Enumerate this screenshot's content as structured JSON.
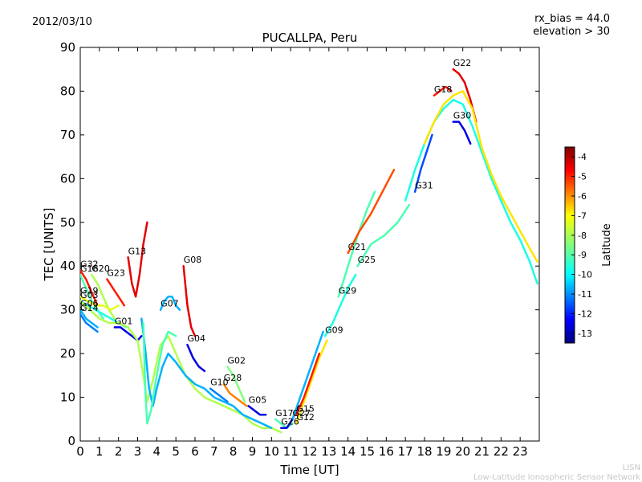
{
  "header": {
    "date": "2012/03/10",
    "rx_bias": "rx_bias = 44.0",
    "elevation": "elevation > 30"
  },
  "footer": {
    "org_short": "LISN",
    "org_full": "Low-Latitude Ionospheric Sensor Network"
  },
  "chart_data": {
    "type": "scatter",
    "title": "PUCALLPA, Peru",
    "xlabel": "Time [UT]",
    "ylabel": "TEC [UNITS]",
    "xlim": [
      0,
      24
    ],
    "ylim": [
      0,
      90
    ],
    "xticks": [
      "0",
      "1",
      "2",
      "3",
      "4",
      "5",
      "6",
      "7",
      "8",
      "9",
      "10",
      "11",
      "12",
      "13",
      "14",
      "15",
      "16",
      "17",
      "18",
      "19",
      "20",
      "21",
      "22",
      "23"
    ],
    "yticks": [
      "0",
      "10",
      "20",
      "30",
      "40",
      "50",
      "60",
      "70",
      "80",
      "90"
    ],
    "grid": false,
    "colorbar": {
      "label": "Latitude",
      "min": -13.5,
      "max": -3.5,
      "ticks": [
        "-4",
        "-5",
        "-6",
        "-7",
        "-8",
        "-9",
        "-10",
        "-11",
        "-12",
        "-13"
      ],
      "colors": [
        "#00007f",
        "#0000ff",
        "#007fff",
        "#00ffff",
        "#7fff7f",
        "#ffff00",
        "#ff7f00",
        "#ff0000",
        "#7f0000"
      ]
    },
    "series": [
      {
        "name": "G32",
        "lat": -5.0,
        "x": [
          0.0,
          0.3,
          0.6,
          0.9
        ],
        "y": [
          39,
          37,
          34,
          31
        ]
      },
      {
        "name": "G20",
        "lat": -8.0,
        "x": [
          0.6,
          0.9,
          1.2,
          1.5,
          1.8
        ],
        "y": [
          38,
          36,
          33,
          30,
          28
        ]
      },
      {
        "name": "G16",
        "lat": -9.0,
        "x": [
          0.0,
          0.3,
          0.6,
          0.9,
          1.2
        ],
        "y": [
          38,
          35,
          32,
          30,
          28
        ]
      },
      {
        "name": "G23",
        "lat": -5.0,
        "x": [
          1.4,
          1.7,
          2.0,
          2.3
        ],
        "y": [
          37,
          35,
          33,
          31
        ]
      },
      {
        "name": "G19",
        "lat": -7.5,
        "x": [
          0.0,
          0.4,
          0.8,
          1.2,
          1.6,
          2.0
        ],
        "y": [
          33,
          32,
          31,
          31,
          30,
          31
        ]
      },
      {
        "name": "G03",
        "lat": -9.5,
        "x": [
          0.0,
          0.4,
          0.8,
          1.2,
          1.6,
          2.0,
          2.4
        ],
        "y": [
          32,
          31,
          30,
          29,
          28,
          27,
          26
        ]
      },
      {
        "name": "G06",
        "lat": -10.5,
        "x": [
          0.0,
          0.3,
          0.6,
          0.9
        ],
        "y": [
          30,
          28,
          27,
          26
        ]
      },
      {
        "name": "G14",
        "lat": -11.0,
        "x": [
          0.0,
          0.3,
          0.6,
          0.9
        ],
        "y": [
          29,
          27,
          26,
          25
        ]
      },
      {
        "name": "G13",
        "lat": -4.5,
        "x": [
          2.5,
          2.7,
          2.9,
          3.1,
          3.3,
          3.5
        ],
        "y": [
          42,
          36,
          33,
          38,
          45,
          50
        ]
      },
      {
        "name": "G01",
        "lat": -12.5,
        "x": [
          1.8,
          2.1,
          2.4,
          2.7,
          3.0,
          3.2
        ],
        "y": [
          26,
          26,
          25,
          24,
          23,
          24
        ]
      },
      {
        "name": "G07",
        "lat": -10.5,
        "x": [
          4.2,
          4.4,
          4.6,
          4.8,
          5.0,
          5.2
        ],
        "y": [
          30,
          32,
          33,
          33,
          31,
          30
        ]
      },
      {
        "name": "G08",
        "lat": -4.5,
        "x": [
          5.4,
          5.6,
          5.8,
          6.0
        ],
        "y": [
          40,
          31,
          26,
          24
        ]
      },
      {
        "name": "G04",
        "lat": -12.5,
        "x": [
          5.6,
          5.9,
          6.2,
          6.5
        ],
        "y": [
          22,
          19,
          17,
          16
        ]
      },
      {
        "name": "G02",
        "lat": -8.5,
        "x": [
          7.7,
          8.0,
          8.3,
          8.6
        ],
        "y": [
          17,
          15,
          12,
          9
        ]
      },
      {
        "name": "G28",
        "lat": -6.0,
        "x": [
          7.5,
          7.8,
          8.1,
          8.4,
          8.7
        ],
        "y": [
          13,
          11,
          10,
          9,
          8
        ]
      },
      {
        "name": "G10",
        "lat": -11.0,
        "x": [
          6.8,
          7.1,
          7.4,
          7.7
        ],
        "y": [
          12,
          11,
          10,
          9
        ]
      },
      {
        "name": "G05",
        "lat": -12.5,
        "x": [
          8.8,
          9.1,
          9.4,
          9.7
        ],
        "y": [
          8,
          7,
          6,
          6
        ]
      },
      {
        "name": "G17",
        "lat": -9.0,
        "x": [
          10.2,
          10.5,
          10.8,
          11.1
        ],
        "y": [
          5,
          4,
          3,
          4
        ]
      },
      {
        "name": "G26",
        "lat": -12.5,
        "x": [
          10.5,
          10.8,
          11.1,
          11.4
        ],
        "y": [
          3,
          3,
          5,
          8
        ]
      },
      {
        "name": "G12",
        "lat": -7.0,
        "x": [
          11.3,
          11.7,
          12.1,
          12.5,
          12.9
        ],
        "y": [
          4,
          9,
          14,
          19,
          23
        ]
      },
      {
        "name": "G15",
        "lat": -5.0,
        "x": [
          11.3,
          11.7,
          12.1,
          12.5
        ],
        "y": [
          6,
          10,
          15,
          20
        ]
      },
      {
        "name": "G27",
        "lat": -10.5,
        "x": [
          11.1,
          11.5,
          11.9,
          12.3,
          12.7
        ],
        "y": [
          5,
          10,
          15,
          20,
          25
        ]
      },
      {
        "name": "G09",
        "lat": -9.5,
        "x": [
          12.8,
          13.2,
          13.6,
          14.0,
          14.4
        ],
        "y": [
          24,
          27,
          31,
          35,
          38
        ]
      },
      {
        "name": "G29",
        "lat": -9.0,
        "x": [
          13.5,
          14.0,
          14.5,
          15.0,
          15.4
        ],
        "y": [
          33,
          40,
          47,
          53,
          57
        ]
      },
      {
        "name": "G21",
        "lat": -5.5,
        "x": [
          14.0,
          14.6,
          15.2,
          15.8,
          16.4
        ],
        "y": [
          43,
          48,
          52,
          57,
          62
        ]
      },
      {
        "name": "G25",
        "lat": -9.0,
        "x": [
          14.5,
          15.2,
          15.9,
          16.6,
          17.2
        ],
        "y": [
          40,
          45,
          47,
          50,
          54
        ]
      },
      {
        "name": "G31",
        "lat": -11.5,
        "x": [
          17.5,
          17.8,
          18.1,
          18.4
        ],
        "y": [
          57,
          62,
          66,
          70
        ]
      },
      {
        "name": "G18",
        "lat": -5.0,
        "x": [
          18.5,
          18.8,
          19.1,
          19.4
        ],
        "y": [
          79,
          80,
          81,
          80
        ]
      },
      {
        "name": "G22",
        "lat": -4.5,
        "x": [
          19.5,
          19.8,
          20.1,
          20.4,
          20.7
        ],
        "y": [
          85,
          84,
          82,
          78,
          73
        ]
      },
      {
        "name": "G30",
        "lat": -12.5,
        "x": [
          19.5,
          19.8,
          20.1,
          20.4
        ],
        "y": [
          73,
          73,
          71,
          68
        ]
      },
      {
        "name": "",
        "lat": -9.5,
        "x": [
          17.0,
          17.5,
          18.0,
          18.5,
          19.0,
          19.5,
          20.0,
          20.5,
          21.0,
          21.5,
          22.0,
          22.5,
          23.0,
          23.5,
          23.9
        ],
        "y": [
          55,
          62,
          68,
          73,
          76,
          78,
          77,
          72,
          66,
          60,
          55,
          50,
          46,
          41,
          36
        ]
      },
      {
        "name": "",
        "lat": -7.0,
        "x": [
          18.0,
          18.5,
          19.0,
          19.5,
          20.0,
          20.5,
          21.0,
          21.5,
          22.0,
          22.5,
          23.0,
          23.5,
          23.9
        ],
        "y": [
          68,
          73,
          77,
          79,
          80,
          76,
          67,
          61,
          56,
          52,
          48,
          44,
          41
        ]
      },
      {
        "name": "",
        "lat": -8.0,
        "x": [
          0.0,
          0.5,
          1.0,
          1.5,
          2.0,
          2.5,
          3.0,
          3.3,
          3.5,
          3.8,
          4.2,
          4.6,
          5.0,
          5.5,
          6.0,
          6.5,
          7.0,
          7.5,
          8.0,
          8.5,
          9.0,
          9.5,
          10.0,
          10.5
        ],
        "y": [
          32,
          30,
          28,
          27,
          27,
          26,
          23,
          15,
          9,
          14,
          22,
          24,
          20,
          15,
          12,
          10,
          9,
          8,
          7,
          6,
          4,
          3,
          3,
          2
        ]
      },
      {
        "name": "",
        "lat": -10.5,
        "x": [
          3.2,
          3.4,
          3.6,
          3.8,
          4.0,
          4.3,
          4.6,
          5.0,
          5.5,
          6.0,
          6.5,
          7.0,
          7.5,
          8.0,
          8.5,
          9.0,
          9.5,
          10.0
        ],
        "y": [
          28,
          21,
          12,
          8,
          12,
          17,
          20,
          18,
          15,
          13,
          12,
          10,
          9,
          8,
          6,
          5,
          4,
          3
        ]
      },
      {
        "name": "",
        "lat": -9.0,
        "x": [
          3.3,
          3.4,
          3.5,
          3.7,
          4.0,
          4.3,
          4.6,
          5.0
        ],
        "y": [
          27,
          12,
          4,
          7,
          15,
          22,
          25,
          24
        ]
      }
    ]
  }
}
